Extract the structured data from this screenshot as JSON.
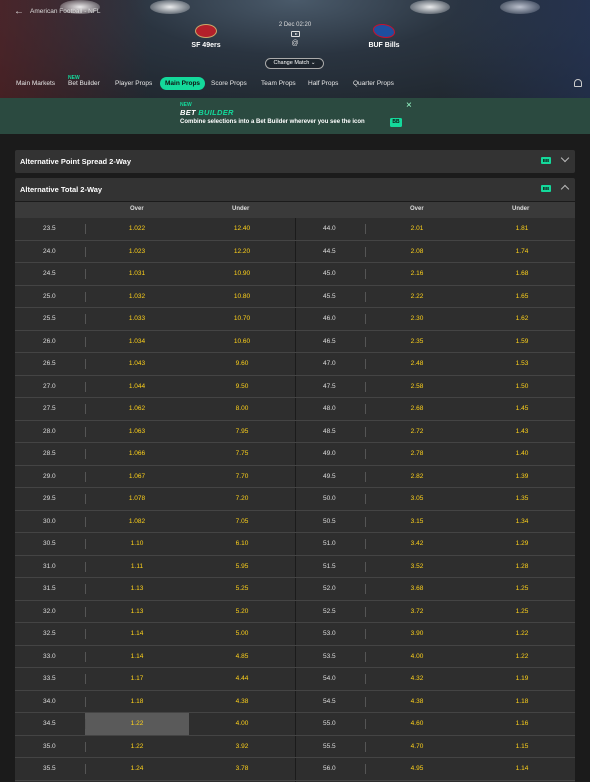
{
  "breadcrumb": "American Football - NFL",
  "match": {
    "home": "SF 49ers",
    "away": "BUF Bills",
    "date": "2 Dec 02:20",
    "at": "@",
    "change_label": "Change Match"
  },
  "tabs": [
    {
      "label": "Main Markets"
    },
    {
      "label": "Bet Builder",
      "badge": "NEW"
    },
    {
      "label": "Player Props"
    },
    {
      "label": "Main Props",
      "active": true
    },
    {
      "label": "Score Props"
    },
    {
      "label": "Team Props"
    },
    {
      "label": "Half Props"
    },
    {
      "label": "Quarter Props"
    }
  ],
  "promo": {
    "badge": "NEW",
    "title_a": "BET ",
    "title_b": "BUILDER",
    "description": "Combine selections into a Bet Builder wherever you see the icon",
    "icon": "BB"
  },
  "markets": [
    {
      "title": "Alternative Point Spread 2-Way",
      "icon": "BB"
    },
    {
      "title": "Alternative Total 2-Way",
      "icon": "BB"
    }
  ],
  "table": {
    "headers": [
      "Over",
      "Under",
      "Over",
      "Under"
    ],
    "selected_row": 22,
    "rows": [
      [
        "23.5",
        "1.022",
        "12.40",
        "44.0",
        "2.01",
        "1.81"
      ],
      [
        "24.0",
        "1.023",
        "12.20",
        "44.5",
        "2.08",
        "1.74"
      ],
      [
        "24.5",
        "1.031",
        "10.90",
        "45.0",
        "2.16",
        "1.68"
      ],
      [
        "25.0",
        "1.032",
        "10.80",
        "45.5",
        "2.22",
        "1.65"
      ],
      [
        "25.5",
        "1.033",
        "10.70",
        "46.0",
        "2.30",
        "1.62"
      ],
      [
        "26.0",
        "1.034",
        "10.60",
        "46.5",
        "2.35",
        "1.59"
      ],
      [
        "26.5",
        "1.043",
        "9.60",
        "47.0",
        "2.48",
        "1.53"
      ],
      [
        "27.0",
        "1.044",
        "9.50",
        "47.5",
        "2.58",
        "1.50"
      ],
      [
        "27.5",
        "1.062",
        "8.00",
        "48.0",
        "2.68",
        "1.45"
      ],
      [
        "28.0",
        "1.063",
        "7.95",
        "48.5",
        "2.72",
        "1.43"
      ],
      [
        "28.5",
        "1.066",
        "7.75",
        "49.0",
        "2.78",
        "1.40"
      ],
      [
        "29.0",
        "1.067",
        "7.70",
        "49.5",
        "2.82",
        "1.39"
      ],
      [
        "29.5",
        "1.078",
        "7.20",
        "50.0",
        "3.05",
        "1.35"
      ],
      [
        "30.0",
        "1.082",
        "7.05",
        "50.5",
        "3.15",
        "1.34"
      ],
      [
        "30.5",
        "1.10",
        "6.10",
        "51.0",
        "3.42",
        "1.29"
      ],
      [
        "31.0",
        "1.11",
        "5.95",
        "51.5",
        "3.52",
        "1.28"
      ],
      [
        "31.5",
        "1.13",
        "5.25",
        "52.0",
        "3.68",
        "1.25"
      ],
      [
        "32.0",
        "1.13",
        "5.20",
        "52.5",
        "3.72",
        "1.25"
      ],
      [
        "32.5",
        "1.14",
        "5.00",
        "53.0",
        "3.90",
        "1.22"
      ],
      [
        "33.0",
        "1.14",
        "4.85",
        "53.5",
        "4.00",
        "1.22"
      ],
      [
        "33.5",
        "1.17",
        "4.44",
        "54.0",
        "4.32",
        "1.19"
      ],
      [
        "34.0",
        "1.18",
        "4.38",
        "54.5",
        "4.38",
        "1.18"
      ],
      [
        "34.5",
        "1.22",
        "4.00",
        "55.0",
        "4.60",
        "1.16"
      ],
      [
        "35.0",
        "1.22",
        "3.92",
        "55.5",
        "4.70",
        "1.15"
      ],
      [
        "35.5",
        "1.24",
        "3.78",
        "56.0",
        "4.95",
        "1.14"
      ]
    ]
  },
  "colors": {
    "accent": "#14d99b",
    "odds": "#ffd21a"
  }
}
